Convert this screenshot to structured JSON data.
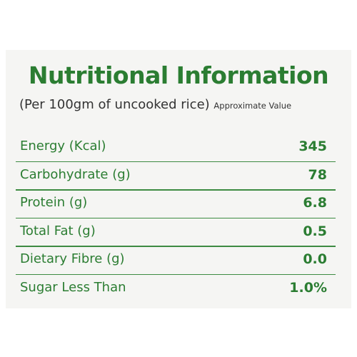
{
  "header": {
    "title": "Nutritional Information",
    "subtitle": "(Per 100gm of uncooked rice)",
    "note": "Approximate Value"
  },
  "table": {
    "rows": [
      [
        "Energy (Kcal)",
        "345"
      ],
      [
        "Carbohydrate (g)",
        "78"
      ],
      [
        "Protein (g)",
        "6.8"
      ],
      [
        "Total Fat (g)",
        "0.5"
      ],
      [
        "Dietary Fibre (g)",
        "0.0"
      ],
      [
        "Sugar Less Than",
        "1.0%"
      ]
    ]
  }
}
